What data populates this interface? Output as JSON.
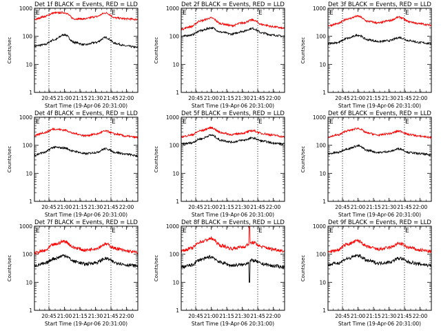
{
  "colors": {
    "events": "#000000",
    "lld": "#ff0000",
    "frame": "#000000",
    "background": "#ffffff"
  },
  "common": {
    "ylabel": "Counts/sec",
    "xlabel": "Start Time (19-Apr-06 20:31:00)",
    "x_tick_labels": [
      "20:45",
      "21:00",
      "21:15",
      "21:30",
      "21:45",
      "22:00"
    ],
    "y_tick_labels": [
      "1",
      "10",
      "100",
      "1000"
    ],
    "flag_mark_left": "E",
    "flag_mark_right": "E"
  },
  "chart_data": [
    {
      "type": "line",
      "title": "Det 1f BLACK = Events, RED = LLD",
      "xlabel": "Start Time (19-Apr-06 20:31:00)",
      "ylabel": "Counts/sec",
      "yscale": "log",
      "ylim": [
        1,
        1000
      ],
      "xlim": [
        "20:31",
        "22:11"
      ],
      "x_ticks": [
        "20:45",
        "21:00",
        "21:15",
        "21:30",
        "21:45",
        "22:00"
      ],
      "dotted_lines": [
        "20:45",
        "21:45"
      ],
      "series": [
        {
          "name": "Events",
          "color": "#000000",
          "x": [
            "20:31",
            "20:40",
            "20:50",
            "21:00",
            "21:10",
            "21:20",
            "21:30",
            "21:40",
            "21:50",
            "22:00",
            "22:11"
          ],
          "values": [
            45,
            50,
            75,
            115,
            60,
            50,
            60,
            90,
            55,
            45,
            40
          ]
        },
        {
          "name": "LLD",
          "color": "#ff0000",
          "x": [
            "20:31",
            "20:40",
            "20:50",
            "21:00",
            "21:10",
            "21:20",
            "21:30",
            "21:40",
            "21:50",
            "22:00",
            "22:11"
          ],
          "values": [
            400,
            500,
            680,
            700,
            420,
            420,
            500,
            680,
            450,
            420,
            400
          ]
        }
      ]
    },
    {
      "type": "line",
      "title": "Det 2f BLACK = Events, RED = LLD",
      "xlabel": "Start Time (19-Apr-06 20:31:00)",
      "ylabel": "Counts/sec",
      "yscale": "log",
      "ylim": [
        1,
        1000
      ],
      "xlim": [
        "20:31",
        "22:11"
      ],
      "x_ticks": [
        "20:45",
        "21:00",
        "21:15",
        "21:30",
        "21:45",
        "22:00"
      ],
      "dotted_lines": [
        "20:45",
        "21:45"
      ],
      "series": [
        {
          "name": "Events",
          "color": "#000000",
          "x": [
            "20:31",
            "20:40",
            "20:50",
            "21:00",
            "21:10",
            "21:20",
            "21:30",
            "21:40",
            "21:50",
            "22:00",
            "22:11"
          ],
          "values": [
            100,
            110,
            160,
            200,
            140,
            120,
            150,
            190,
            130,
            110,
            100
          ]
        },
        {
          "name": "LLD",
          "color": "#ff0000",
          "x": [
            "20:31",
            "20:40",
            "20:50",
            "21:00",
            "21:10",
            "21:20",
            "21:30",
            "21:40",
            "21:50",
            "22:00",
            "22:11"
          ],
          "values": [
            180,
            220,
            360,
            450,
            280,
            240,
            300,
            380,
            260,
            220,
            190
          ]
        }
      ]
    },
    {
      "type": "line",
      "title": "Det 3f BLACK = Events, RED = LLD",
      "xlabel": "Start Time (19-Apr-06 20:31:00)",
      "ylabel": "Counts/sec",
      "yscale": "log",
      "ylim": [
        1,
        1000
      ],
      "xlim": [
        "20:31",
        "22:11"
      ],
      "x_ticks": [
        "20:45",
        "21:00",
        "21:15",
        "21:30",
        "21:45",
        "22:00"
      ],
      "dotted_lines": [
        "20:45",
        "21:45"
      ],
      "series": [
        {
          "name": "Events",
          "color": "#000000",
          "x": [
            "20:31",
            "20:40",
            "20:50",
            "21:00",
            "21:10",
            "21:20",
            "21:30",
            "21:40",
            "21:50",
            "22:00",
            "22:11"
          ],
          "values": [
            55,
            60,
            85,
            110,
            75,
            65,
            70,
            90,
            70,
            60,
            55
          ]
        },
        {
          "name": "LLD",
          "color": "#ff0000",
          "x": [
            "20:31",
            "20:40",
            "20:50",
            "21:00",
            "21:10",
            "21:20",
            "21:30",
            "21:40",
            "21:50",
            "22:00",
            "22:11"
          ],
          "values": [
            240,
            280,
            420,
            520,
            340,
            300,
            360,
            480,
            330,
            280,
            250
          ]
        }
      ]
    },
    {
      "type": "line",
      "title": "Det 4f BLACK = Events, RED = LLD",
      "xlabel": "Start Time (19-Apr-06 20:31:00)",
      "ylabel": "Counts/sec",
      "yscale": "log",
      "ylim": [
        1,
        1000
      ],
      "xlim": [
        "20:31",
        "22:11"
      ],
      "x_ticks": [
        "20:45",
        "21:00",
        "21:15",
        "21:30",
        "21:45",
        "22:00"
      ],
      "dotted_lines": [
        "20:45",
        "21:45"
      ],
      "series": [
        {
          "name": "Events",
          "color": "#000000",
          "x": [
            "20:31",
            "20:40",
            "20:50",
            "21:00",
            "21:10",
            "21:20",
            "21:30",
            "21:40",
            "21:50",
            "22:00",
            "22:11"
          ],
          "values": [
            45,
            55,
            85,
            80,
            60,
            50,
            55,
            75,
            55,
            48,
            42
          ]
        },
        {
          "name": "LLD",
          "color": "#ff0000",
          "x": [
            "20:31",
            "20:40",
            "20:50",
            "21:00",
            "21:10",
            "21:20",
            "21:30",
            "21:40",
            "21:50",
            "22:00",
            "22:11"
          ],
          "values": [
            220,
            280,
            380,
            350,
            260,
            220,
            250,
            320,
            250,
            210,
            190
          ]
        }
      ]
    },
    {
      "type": "line",
      "title": "Det 5f BLACK = Events, RED = LLD",
      "xlabel": "Start Time (19-Apr-06 20:31:00)",
      "ylabel": "Counts/sec",
      "yscale": "log",
      "ylim": [
        1,
        1000
      ],
      "xlim": [
        "20:31",
        "22:11"
      ],
      "x_ticks": [
        "20:45",
        "21:00",
        "21:15",
        "21:30",
        "21:45",
        "22:00"
      ],
      "dotted_lines": [
        "20:45",
        "21:45"
      ],
      "series": [
        {
          "name": "Events",
          "color": "#000000",
          "x": [
            "20:31",
            "20:40",
            "20:50",
            "21:00",
            "21:10",
            "21:20",
            "21:30",
            "21:40",
            "21:50",
            "22:00",
            "22:11"
          ],
          "values": [
            110,
            120,
            170,
            230,
            150,
            130,
            150,
            180,
            140,
            120,
            110
          ]
        },
        {
          "name": "LLD",
          "color": "#ff0000",
          "x": [
            "20:31",
            "20:40",
            "20:50",
            "21:00",
            "21:10",
            "21:20",
            "21:30",
            "21:40",
            "21:50",
            "22:00",
            "22:11"
          ],
          "values": [
            200,
            230,
            330,
            420,
            280,
            240,
            270,
            330,
            260,
            230,
            200
          ]
        }
      ]
    },
    {
      "type": "line",
      "title": "Det 6f BLACK = Events, RED = LLD",
      "xlabel": "Start Time (19-Apr-06 20:31:00)",
      "ylabel": "Counts/sec",
      "yscale": "log",
      "ylim": [
        1,
        1000
      ],
      "xlim": [
        "20:31",
        "22:11"
      ],
      "x_ticks": [
        "20:45",
        "21:00",
        "21:15",
        "21:30",
        "21:45",
        "22:00"
      ],
      "dotted_lines": [
        "20:45",
        "21:45"
      ],
      "series": [
        {
          "name": "Events",
          "color": "#000000",
          "x": [
            "20:31",
            "20:40",
            "20:50",
            "21:00",
            "21:10",
            "21:20",
            "21:30",
            "21:40",
            "21:50",
            "22:00",
            "22:11"
          ],
          "values": [
            50,
            55,
            75,
            95,
            65,
            55,
            60,
            75,
            55,
            50,
            45
          ]
        },
        {
          "name": "LLD",
          "color": "#ff0000",
          "x": [
            "20:31",
            "20:40",
            "20:50",
            "21:00",
            "21:10",
            "21:20",
            "21:30",
            "21:40",
            "21:50",
            "22:00",
            "22:11"
          ],
          "values": [
            200,
            230,
            330,
            400,
            270,
            230,
            260,
            320,
            240,
            210,
            190
          ]
        }
      ]
    },
    {
      "type": "line",
      "title": "Det 7f BLACK = Events, RED = LLD",
      "xlabel": "Start Time (19-Apr-06 20:31:00)",
      "ylabel": "Counts/sec",
      "yscale": "log",
      "ylim": [
        1,
        1000
      ],
      "xlim": [
        "20:31",
        "22:11"
      ],
      "x_ticks": [
        "20:45",
        "21:00",
        "21:15",
        "21:30",
        "21:45",
        "22:00"
      ],
      "dotted_lines": [
        "20:45",
        "21:45"
      ],
      "series": [
        {
          "name": "Events",
          "color": "#000000",
          "x": [
            "20:31",
            "20:40",
            "20:50",
            "21:00",
            "21:10",
            "21:20",
            "21:30",
            "21:40",
            "21:50",
            "22:00",
            "22:11"
          ],
          "values": [
            40,
            45,
            70,
            90,
            55,
            45,
            50,
            70,
            50,
            42,
            38
          ]
        },
        {
          "name": "LLD",
          "color": "#ff0000",
          "x": [
            "20:31",
            "20:40",
            "20:50",
            "21:00",
            "21:10",
            "21:20",
            "21:30",
            "21:40",
            "21:50",
            "22:00",
            "22:11"
          ],
          "values": [
            110,
            130,
            220,
            290,
            170,
            140,
            160,
            230,
            160,
            130,
            115
          ]
        }
      ]
    },
    {
      "type": "line",
      "title": "Det 8f BLACK = Events, RED = LLD",
      "xlabel": "Start Time (19-Apr-06 20:31:00)",
      "ylabel": "Counts/sec",
      "yscale": "log",
      "ylim": [
        1,
        1000
      ],
      "xlim": [
        "20:31",
        "22:11"
      ],
      "x_ticks": [
        "20:45",
        "21:00",
        "21:15",
        "21:30",
        "21:45",
        "22:00"
      ],
      "dotted_lines": [
        "20:45",
        "21:45"
      ],
      "series": [
        {
          "name": "Events",
          "color": "#000000",
          "x": [
            "20:31",
            "20:40",
            "20:50",
            "21:00",
            "21:10",
            "21:20",
            "21:30",
            "21:40",
            "21:50",
            "22:00",
            "22:11"
          ],
          "values": [
            35,
            40,
            65,
            80,
            50,
            40,
            42,
            60,
            45,
            38,
            35
          ],
          "spike": {
            "x": "21:37",
            "value": 10
          }
        },
        {
          "name": "LLD",
          "color": "#ff0000",
          "x": [
            "20:31",
            "20:40",
            "20:50",
            "21:00",
            "21:10",
            "21:20",
            "21:30",
            "21:40",
            "21:50",
            "22:00",
            "22:11"
          ],
          "values": [
            130,
            160,
            280,
            360,
            200,
            160,
            180,
            260,
            180,
            150,
            130
          ],
          "spike": {
            "x": "21:37",
            "value": 1000
          }
        }
      ]
    },
    {
      "type": "line",
      "title": "Det 9f BLACK = Events, RED = LLD",
      "xlabel": "Start Time (19-Apr-06 20:31:00)",
      "ylabel": "Counts/sec",
      "yscale": "log",
      "ylim": [
        1,
        1000
      ],
      "xlim": [
        "20:31",
        "22:11"
      ],
      "x_ticks": [
        "20:45",
        "21:00",
        "21:15",
        "21:30",
        "21:45",
        "22:00"
      ],
      "dotted_lines": [
        "20:45",
        "21:45"
      ],
      "series": [
        {
          "name": "Events",
          "color": "#000000",
          "x": [
            "20:31",
            "20:40",
            "20:50",
            "21:00",
            "21:10",
            "21:20",
            "21:30",
            "21:40",
            "21:50",
            "22:00",
            "22:11"
          ],
          "values": [
            42,
            48,
            70,
            90,
            58,
            48,
            52,
            72,
            52,
            44,
            40
          ]
        },
        {
          "name": "LLD",
          "color": "#ff0000",
          "x": [
            "20:31",
            "20:40",
            "20:50",
            "21:00",
            "21:10",
            "21:20",
            "21:30",
            "21:40",
            "21:50",
            "22:00",
            "22:11"
          ],
          "values": [
            120,
            140,
            230,
            300,
            180,
            150,
            170,
            240,
            170,
            140,
            125
          ]
        }
      ]
    }
  ]
}
